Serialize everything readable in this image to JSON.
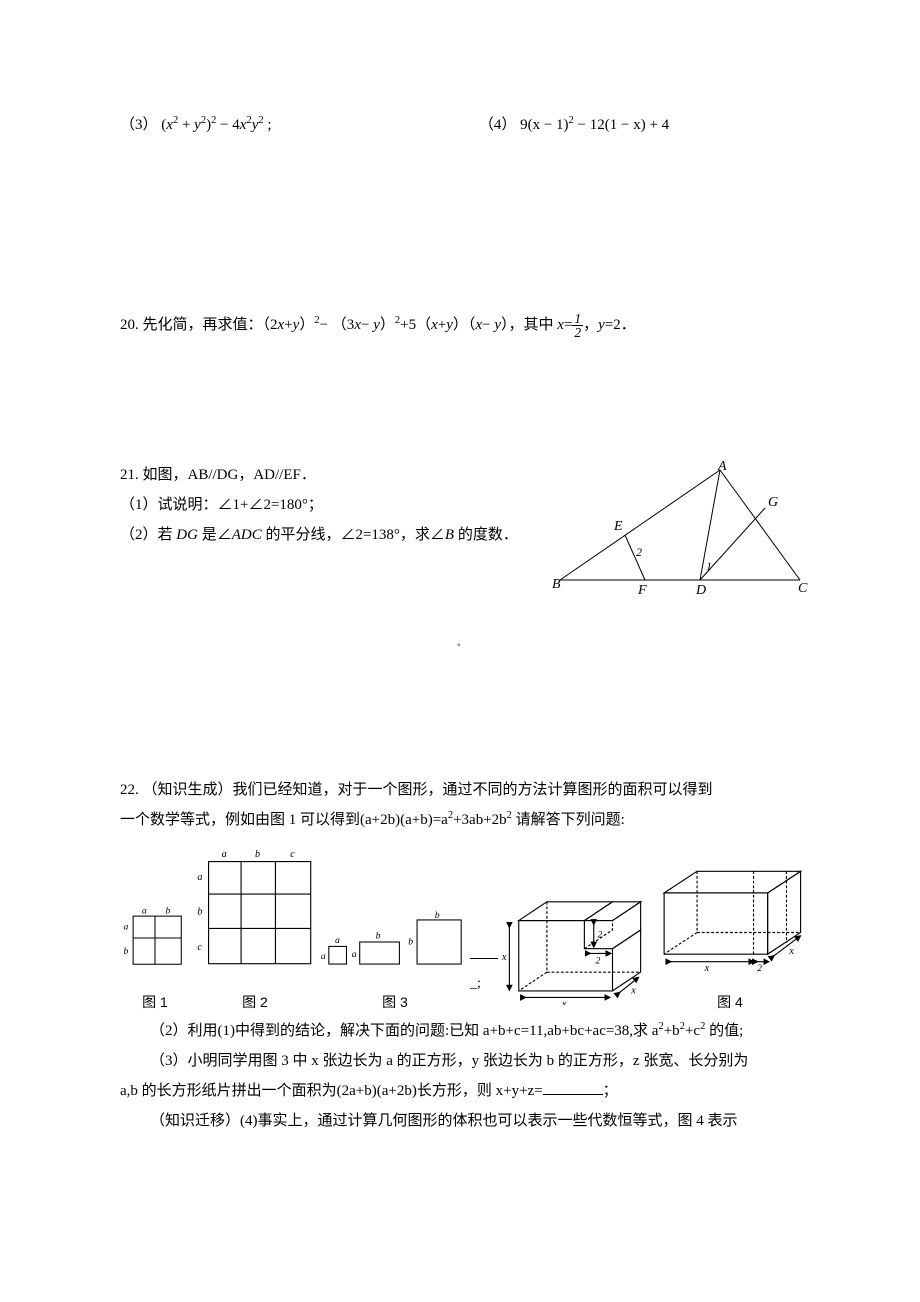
{
  "q19": {
    "part3_label": "（3）",
    "part3_expr_html": "(<span class='mi'>x</span><span class='sup'>2</span> + <span class='mi'>y</span><span class='sup'>2</span>)<span class='sup'>2</span> − 4<span class='mi'>x</span><span class='sup'>2</span><span class='mi'>y</span><span class='sup'>2</span> ;",
    "part4_label": "（4）",
    "part4_expr_html": "9(x − 1)<span class='sup'>2</span> − 12(1 − x) + 4"
  },
  "q20": {
    "number": "20.",
    "text_html": "先化简，再求值：（2<span class='mi'>x</span>+<span class='mi'>y</span>）<span class='sup'>2</span>− （3<span class='mi'>x</span>− <span class='mi'>y</span>）<span class='sup'>2</span>+5（<span class='mi'>x</span>+<span class='mi'>y</span>）（<span class='mi'>x</span>− <span class='mi'>y</span>），其中 <span class='mi'>x</span>=<span class='frac'><span class='num'>1</span><span class='den'>2</span></span>，<span class='mi'>y</span>=2．"
  },
  "q21": {
    "number": "21.",
    "line1": "如图，AB//DG，AD//EF．",
    "line2": "（1）试说明：∠1+∠2=180°；",
    "line3_html": "（2）若 <span class='mi'>DG</span> 是∠<span class='mi'>ADC</span> 的平分线，∠2=138°，求∠<span class='mi'>B</span> 的度数．",
    "fig": {
      "A": "A",
      "B": "B",
      "C": "C",
      "D": "D",
      "E": "E",
      "F": "F",
      "G": "G",
      "ang1": "1",
      "ang2": "2"
    }
  },
  "q22": {
    "number": "22.",
    "line1": "（知识生成）我们已经知道，对于一个图形，通过不同的方法计算图形的面积可以得到",
    "line2_html": "一个数学等式，例如由图 1 可以得到(a+2b)(a+b)=a<span class='sup'>2</span>+3ab+2b<span class='sup'>2</span> 请解答下列问题:",
    "fig1_label": "图 1",
    "fig2_label": "图 2",
    "fig3_label": "图 3",
    "fig4_label": "图 4",
    "blank_suffix": "_;",
    "line3_html": "（2）利用(1)中得到的结论，解决下面的问题:已知 a+b+c=11,ab+bc+ac=38,求 a<span class='sup'>2</span>+b<span class='sup'>2</span>+c<span class='sup'>2</span> 的值;",
    "line4": "（3）小明同学用图 3 中 x 张边长为 a 的正方形，y 张边长为 b 的正方形，z 张宽、长分别为",
    "line5_html": "a,b 的长方形纸片拼出一个面积为(2a+b)(a+2b)长方形，则 x+y+z=<span class='underline'></span>；",
    "line6": "（知识迁移）(4)事实上，通过计算几何图形的体积也可以表示一些代数恒等式，图 4 表示",
    "fig_labels": {
      "a": "a",
      "b": "b",
      "c": "c",
      "x": "x",
      "two": "2"
    }
  },
  "colors": {
    "line": "#000000",
    "bg": "#ffffff",
    "dot": "#999999"
  }
}
